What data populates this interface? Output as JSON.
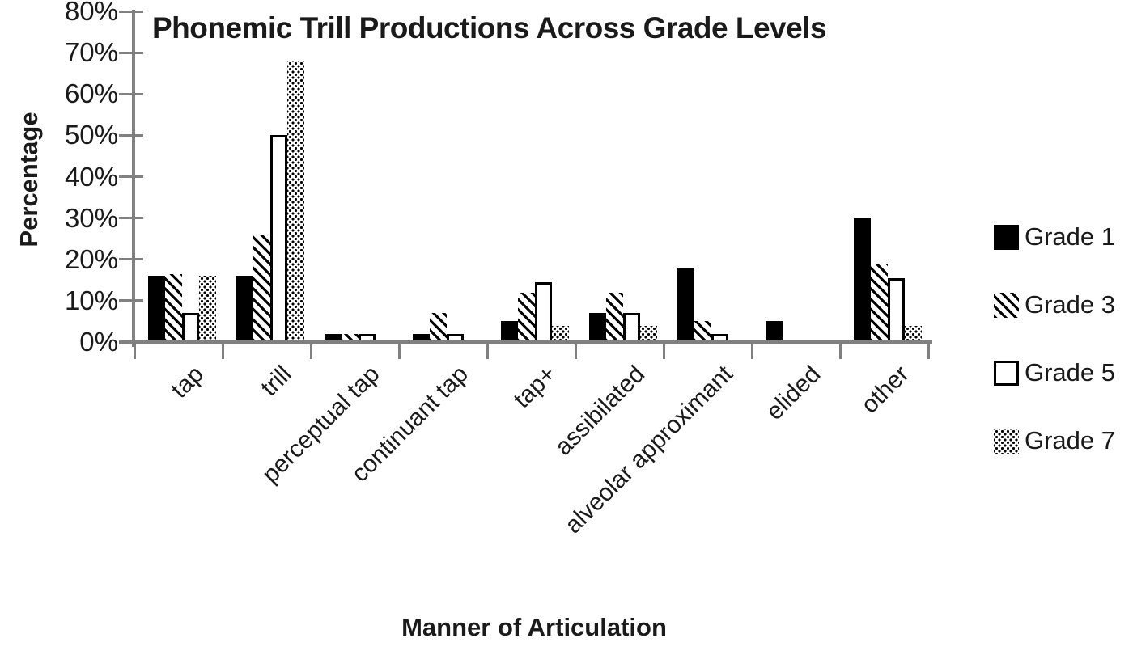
{
  "chart": {
    "title": "Phonemic Trill Productions Across Grade Levels",
    "ylabel": "Percentage",
    "xlabel": "Manner of Articulation"
  },
  "chart_data": {
    "type": "bar",
    "title": "Phonemic Trill Productions Across Grade Levels",
    "xlabel": "Manner of Articulation",
    "ylabel": "Percentage",
    "ylim": [
      0,
      80
    ],
    "grid": false,
    "legend_position": "right",
    "y_ticks": [
      "0%",
      "10%",
      "20%",
      "30%",
      "40%",
      "50%",
      "60%",
      "70%",
      "80%"
    ],
    "categories": [
      "tap",
      "trill",
      "perceptual tap",
      "continuant tap",
      "tap+",
      "assibilated",
      "alveolar approximant",
      "elided",
      "other"
    ],
    "series": [
      {
        "name": "Grade 1",
        "pattern": "solid",
        "values": [
          16,
          16,
          2,
          2,
          5,
          7,
          18,
          5,
          30
        ]
      },
      {
        "name": "Grade 3",
        "pattern": "hatch",
        "values": [
          16.5,
          26,
          2,
          7,
          12,
          12,
          5,
          0,
          19
        ]
      },
      {
        "name": "Grade 5",
        "pattern": "outline",
        "values": [
          7,
          50,
          2,
          2,
          14.5,
          7,
          2,
          0,
          15.5
        ]
      },
      {
        "name": "Grade 7",
        "pattern": "dots",
        "values": [
          16,
          68,
          0,
          0,
          4,
          4,
          0,
          0,
          4
        ]
      }
    ],
    "colors": {
      "bar": "#000000",
      "axis": "#808080",
      "text": "#1a1a1a"
    }
  }
}
